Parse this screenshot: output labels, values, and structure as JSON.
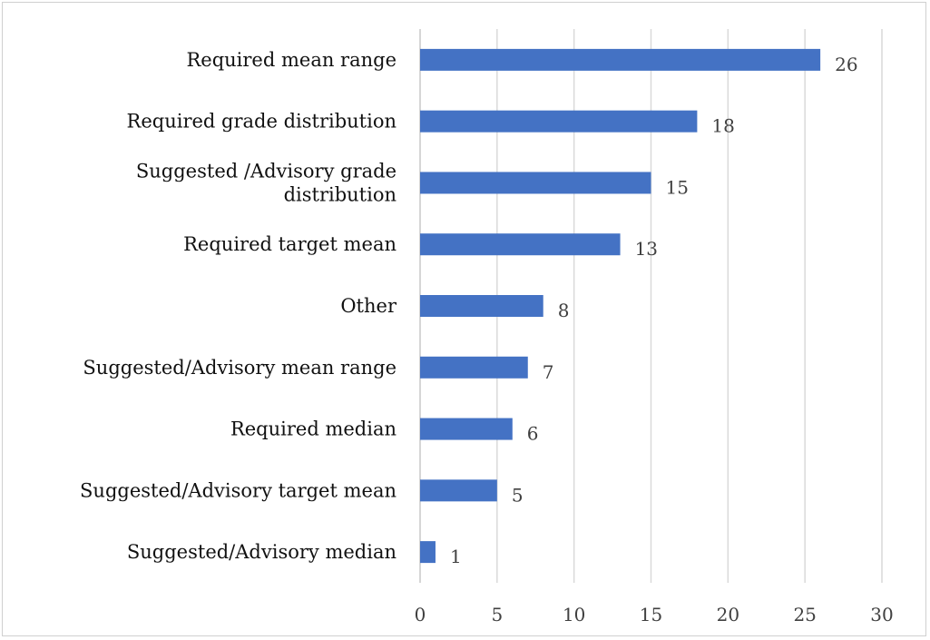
{
  "chart_data": {
    "type": "bar",
    "orientation": "horizontal",
    "title": "",
    "xlabel": "",
    "ylabel": "",
    "xlim": [
      0,
      30
    ],
    "ticks": [
      "0",
      "5",
      "10",
      "15",
      "20",
      "25",
      "30"
    ],
    "tick_values": [
      0,
      5,
      10,
      15,
      20,
      25,
      30
    ],
    "grid": "vertical",
    "legend": "none",
    "bar_color": "#4472C4",
    "categories": [
      [
        "Required mean range"
      ],
      [
        "Required grade distribution"
      ],
      [
        "Suggested /Advisory grade",
        "distribution"
      ],
      [
        "Required target mean"
      ],
      [
        "Other"
      ],
      [
        "Suggested/Advisory mean range"
      ],
      [
        "Required median"
      ],
      [
        "Suggested/Advisory target mean"
      ],
      [
        "Suggested/Advisory median"
      ]
    ],
    "values": [
      26,
      18,
      15,
      13,
      8,
      7,
      6,
      5,
      1
    ],
    "data_labels": [
      "26",
      "18",
      "15",
      "13",
      "8",
      "7",
      "6",
      "5",
      "1"
    ]
  }
}
